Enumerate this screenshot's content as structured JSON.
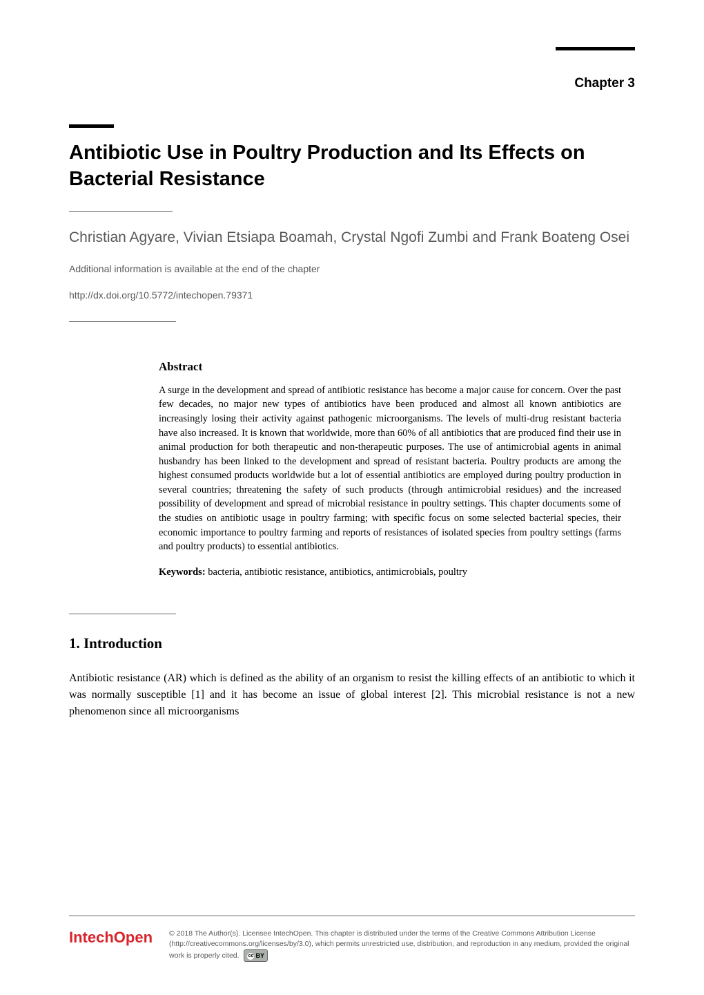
{
  "chapter_label": "Chapter 3",
  "title": "Antibiotic Use in Poultry Production and Its Effects on Bacterial Resistance",
  "authors": "Christian Agyare, Vivian Etsiapa Boamah, Crystal Ngofi Zumbi and Frank Boateng Osei",
  "additional_info": "Additional information is available at the end of the chapter",
  "doi": "http://dx.doi.org/10.5772/intechopen.79371",
  "abstract": {
    "heading": "Abstract",
    "body": "A surge in the development and spread of antibiotic resistance has become a major cause for concern. Over the past few decades, no major new types of antibiotics have been produced and almost all known antibiotics are increasingly losing their activity against pathogenic microorganisms. The levels of multi-drug resistant bacteria have also increased. It is known that worldwide, more than 60% of all antibiotics that are produced find their use in animal production for both therapeutic and non-therapeutic purposes. The use of antimicrobial agents in animal husbandry has been linked to the development and spread of resistant bacteria. Poultry products are among the highest consumed products worldwide but a lot of essential antibiotics are employed during poultry production in several countries; threatening the safety of such products (through antimicrobial residues) and the increased possibility of development and spread of microbial resistance in poultry settings. This chapter documents some of the studies on antibiotic usage in poultry farming; with specific focus on some selected bacterial species, their economic importance to poultry farming and reports of resistances of isolated species from poultry settings (farms and poultry products) to essential antibiotics.",
    "keywords_label": "Keywords:",
    "keywords_text": " bacteria, antibiotic resistance, antibiotics, antimicrobials, poultry"
  },
  "section": {
    "heading": "1. Introduction",
    "body": "Antibiotic resistance (AR) which is defined as the ability of an organism to resist the killing effects of an antibiotic to which it was normally susceptible [1] and it has become an issue of global interest [2]. This microbial resistance is not a new phenomenon since all microorganisms"
  },
  "footer": {
    "logo": "IntechOpen",
    "license": "© 2018 The Author(s). Licensee IntechOpen. This chapter is distributed under the terms of the Creative Commons Attribution License (http://creativecommons.org/licenses/by/3.0), which permits unrestricted use, distribution, and reproduction in any medium, provided the original work is properly cited.",
    "cc_label": "BY"
  },
  "colors": {
    "text": "#000000",
    "grey_text": "#58595b",
    "rule": "#666666",
    "logo": "#d8232a",
    "background": "#ffffff"
  },
  "typography": {
    "chapter_fontsize": 19,
    "title_fontsize": 29,
    "author_fontsize": 21,
    "meta_fontsize": 14,
    "abstract_heading_fontsize": 17,
    "abstract_body_fontsize": 14.5,
    "section_heading_fontsize": 21,
    "body_fontsize": 16,
    "footer_fontsize": 10.5,
    "logo_fontsize": 22
  }
}
